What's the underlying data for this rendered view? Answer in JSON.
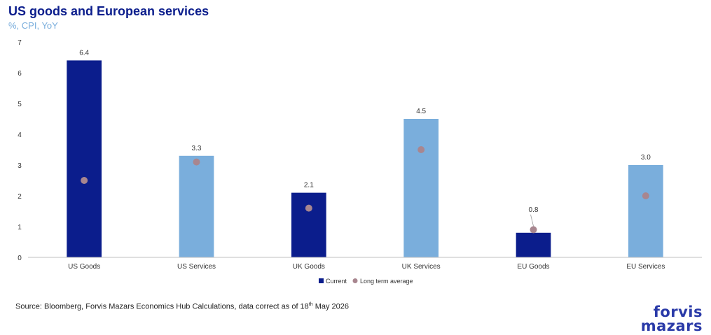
{
  "header": {
    "title": "US goods and European services",
    "subtitle": "%, CPI, YoY"
  },
  "chart_data": {
    "type": "bar",
    "categories": [
      "US Goods",
      "US Services",
      "UK Goods",
      "UK Services",
      "EU Goods",
      "EU Services"
    ],
    "series": [
      {
        "name": "Current",
        "values": [
          6.4,
          3.3,
          2.1,
          4.5,
          0.8,
          3.0
        ]
      },
      {
        "name": "Long term average",
        "values": [
          2.5,
          3.1,
          1.6,
          3.5,
          0.9,
          2.0
        ]
      }
    ],
    "data_labels": [
      "6.4",
      "3.3",
      "2.1",
      "4.5",
      "0.8",
      "3.0"
    ],
    "bar_colors": [
      "#0b1d8c",
      "#7aaedc",
      "#0b1d8c",
      "#7aaedc",
      "#0b1d8c",
      "#7aaedc"
    ],
    "marker_color": "#a8868f",
    "legend_swatch_color": "#0b1d8c",
    "ylim": [
      0,
      7
    ],
    "yticks": [
      "0",
      "1",
      "2",
      "3",
      "4",
      "5",
      "6",
      "7"
    ],
    "grid": false,
    "legend_position": "bottom"
  },
  "footer": {
    "source_prefix": "Source: Bloomberg, Forvis Mazars Economics Hub Calculations, data correct as of 18",
    "source_sup": "th",
    "source_suffix": " May 2026"
  },
  "logo": {
    "line1": "forvis",
    "line2": "mazars"
  }
}
